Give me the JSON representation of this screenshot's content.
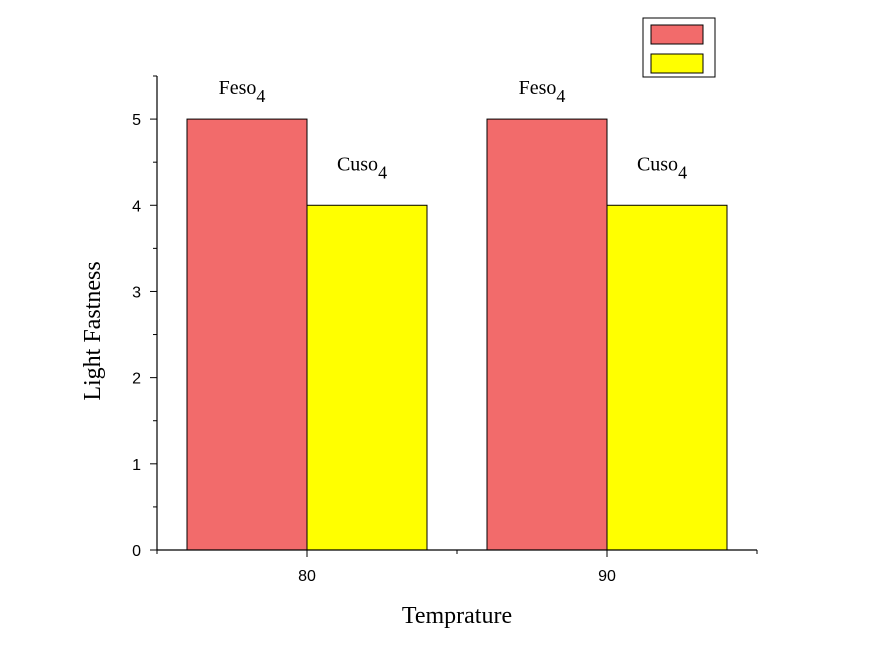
{
  "chart_data": {
    "type": "bar",
    "categories": [
      "80",
      "90"
    ],
    "series": [
      {
        "color": "#f26b6b",
        "values": [
          5,
          5
        ],
        "labels": [
          {
            "text": "Feso",
            "sub": "4"
          },
          {
            "text": "Feso",
            "sub": "4"
          }
        ]
      },
      {
        "color": "#ffff00",
        "values": [
          4,
          4
        ],
        "labels": [
          {
            "text": "Cuso",
            "sub": "4"
          },
          {
            "text": "Cuso",
            "sub": "4"
          }
        ]
      }
    ],
    "xlabel": "Temprature",
    "ylabel": "Light Fastness",
    "ylim": [
      0,
      5.5
    ],
    "yticks": [
      "0",
      "1",
      "2",
      "3",
      "4",
      "5"
    ],
    "grid": false,
    "legend_position": "top-right"
  }
}
